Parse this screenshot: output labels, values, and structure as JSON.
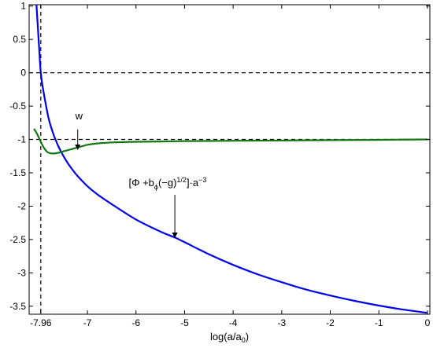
{
  "chart_data": {
    "type": "line",
    "title": "",
    "xlabel": "log(a/a0)",
    "xlabel_parts": {
      "main": "log(a/a",
      "sub": "0",
      "close": ")"
    },
    "ylabel": "",
    "xlim": [
      -8.2,
      0.05
    ],
    "ylim": [
      -3.62,
      1.02
    ],
    "grid": false,
    "x_ticks": [
      {
        "value": -7.96,
        "label": "-7.96"
      },
      {
        "value": -7,
        "label": "-7"
      },
      {
        "value": -6,
        "label": "-6"
      },
      {
        "value": -5,
        "label": "-5"
      },
      {
        "value": -4,
        "label": "-4"
      },
      {
        "value": -3,
        "label": "-3"
      },
      {
        "value": -2,
        "label": "-2"
      },
      {
        "value": -1,
        "label": "-1"
      },
      {
        "value": 0,
        "label": "0"
      }
    ],
    "y_ticks": [
      {
        "value": 1,
        "label": "1"
      },
      {
        "value": 0.5,
        "label": "0.5"
      },
      {
        "value": 0,
        "label": "0"
      },
      {
        "value": -0.5,
        "label": "-0.5"
      },
      {
        "value": -1,
        "label": "-1"
      },
      {
        "value": -1.5,
        "label": "-1.5"
      },
      {
        "value": -2,
        "label": "-2"
      },
      {
        "value": -2.5,
        "label": "-2.5"
      },
      {
        "value": -3,
        "label": "-3"
      },
      {
        "value": -3.5,
        "label": "-3.5"
      }
    ],
    "reference_lines": [
      {
        "orientation": "horizontal",
        "value": 0,
        "style": "dashed",
        "color": "#000000"
      },
      {
        "orientation": "horizontal",
        "value": -1,
        "style": "dashed",
        "color": "#000000"
      },
      {
        "orientation": "vertical",
        "value": -7.96,
        "style": "dashed",
        "color": "#000000"
      }
    ],
    "series": [
      {
        "key": "blue",
        "color": "#0000ee",
        "x": [
          -8.05,
          -8.0,
          -7.96,
          -7.9,
          -7.8,
          -7.7,
          -7.6,
          -7.5,
          -7.4,
          -7.3,
          -7.2,
          -7.0,
          -6.8,
          -6.5,
          -6.0,
          -5.5,
          -5.2,
          -5.0,
          -4.5,
          -4.0,
          -3.5,
          -3.0,
          -2.5,
          -2.0,
          -1.5,
          -1.0,
          -0.5,
          0.0
        ],
        "y": [
          1.02,
          0.45,
          0.0,
          -0.3,
          -0.68,
          -0.92,
          -1.1,
          -1.24,
          -1.36,
          -1.46,
          -1.55,
          -1.7,
          -1.82,
          -1.97,
          -2.2,
          -2.38,
          -2.47,
          -2.54,
          -2.72,
          -2.88,
          -3.02,
          -3.14,
          -3.25,
          -3.34,
          -3.42,
          -3.49,
          -3.55,
          -3.6
        ]
      },
      {
        "key": "green",
        "color": "#117711",
        "x": [
          -8.1,
          -8.05,
          -8.0,
          -7.95,
          -7.9,
          -7.85,
          -7.8,
          -7.7,
          -7.6,
          -7.5,
          -7.4,
          -7.3,
          -7.2,
          -7.1,
          -7.0,
          -6.8,
          -6.5,
          -6.0,
          -5.5,
          -5.0,
          -4.0,
          -3.0,
          -2.0,
          -1.0,
          0.0
        ],
        "y": [
          -0.84,
          -0.9,
          -0.97,
          -1.05,
          -1.12,
          -1.17,
          -1.2,
          -1.21,
          -1.2,
          -1.18,
          -1.16,
          -1.14,
          -1.12,
          -1.1,
          -1.08,
          -1.06,
          -1.045,
          -1.035,
          -1.03,
          -1.025,
          -1.02,
          -1.015,
          -1.01,
          -1.005,
          -1.0
        ]
      }
    ],
    "annotations": [
      {
        "key": "w",
        "text": "w",
        "text_at": [
          -7.25,
          -0.7
        ],
        "arrow_from": [
          -7.2,
          -0.85
        ],
        "arrow_to": [
          -7.2,
          -1.15
        ]
      },
      {
        "key": "blue",
        "text": "[Φ +b_φ(−g)^{1/2}]·a^{−3}",
        "parts": {
          "p1": "[Φ +b",
          "sub": "ϕ",
          "p2": "(−g)",
          "sup1": "1/2",
          "p3": "]·a",
          "sup2": "−3"
        },
        "text_at": [
          -6.15,
          -1.7
        ],
        "arrow_from": [
          -5.2,
          -1.83
        ],
        "arrow_to": [
          -5.2,
          -2.47
        ]
      }
    ]
  }
}
